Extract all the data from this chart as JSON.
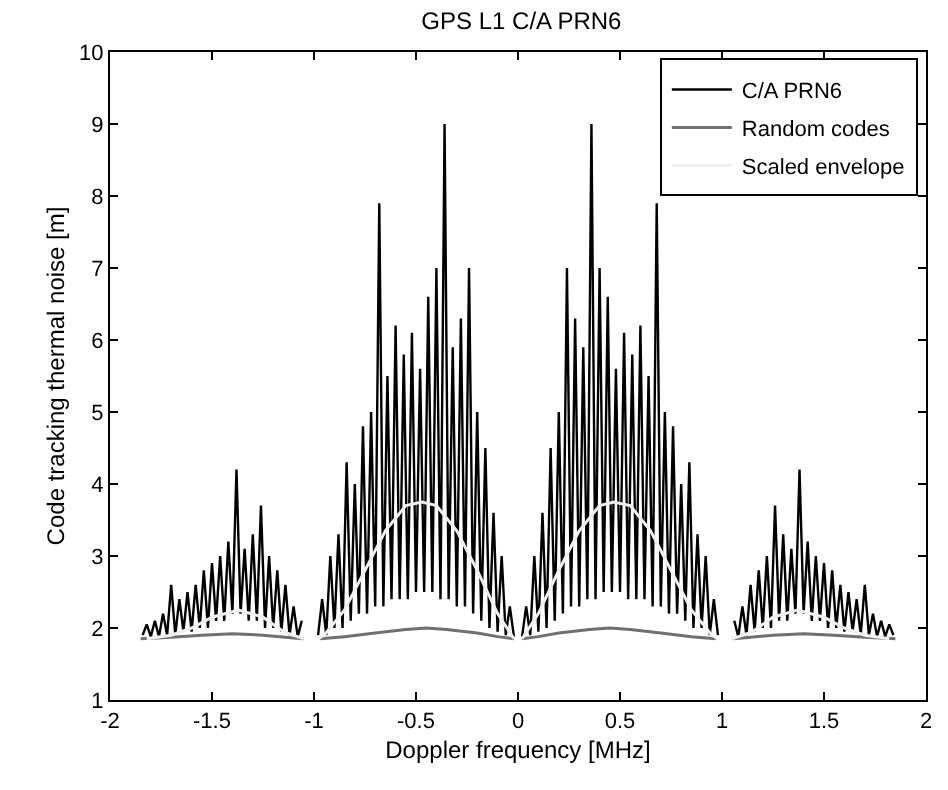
{
  "chart_data": {
    "type": "line",
    "title": "GPS L1 C/A PRN6",
    "xlabel": "Doppler frequency [MHz]",
    "ylabel": "Code tracking thermal noise [m]",
    "xlim": [
      -2,
      2
    ],
    "xticks": [
      -2,
      -1.5,
      -1,
      -0.5,
      0,
      0.5,
      1,
      1.5,
      2
    ],
    "ylim": [
      1,
      10
    ],
    "yticks": [
      1,
      2,
      3,
      4,
      5,
      6,
      7,
      8,
      9,
      10
    ],
    "legend": "top right",
    "line_style": "solid",
    "marker": "none",
    "series": [
      {
        "name": "C/A PRN6",
        "color": "#000000",
        "x": [
          -1.84,
          -1.82,
          -1.8,
          -1.78,
          -1.76,
          -1.74,
          -1.72,
          -1.7,
          -1.68,
          -1.66,
          -1.64,
          -1.62,
          -1.6,
          -1.58,
          -1.56,
          -1.54,
          -1.52,
          -1.5,
          -1.48,
          -1.46,
          -1.44,
          -1.42,
          -1.4,
          -1.38,
          -1.36,
          -1.34,
          -1.32,
          -1.3,
          -1.28,
          -1.26,
          -1.24,
          -1.22,
          -1.2,
          -1.18,
          -1.16,
          -1.14,
          -1.12,
          -1.1,
          -1.08,
          -1.06,
          -1.0,
          -0.98,
          -0.96,
          -0.94,
          -0.92,
          -0.9,
          -0.88,
          -0.86,
          -0.84,
          -0.82,
          -0.8,
          -0.78,
          -0.76,
          -0.74,
          -0.72,
          -0.7,
          -0.68,
          -0.66,
          -0.64,
          -0.62,
          -0.6,
          -0.58,
          -0.56,
          -0.54,
          -0.52,
          -0.5,
          -0.48,
          -0.46,
          -0.44,
          -0.42,
          -0.4,
          -0.38,
          -0.36,
          -0.34,
          -0.32,
          -0.3,
          -0.28,
          -0.26,
          -0.24,
          -0.22,
          -0.2,
          -0.18,
          -0.16,
          -0.14,
          -0.12,
          -0.1,
          -0.08,
          -0.06,
          -0.04,
          -0.02,
          0,
          0.02,
          0.04,
          0.06,
          0.08,
          0.1,
          0.12,
          0.14,
          0.16,
          0.18,
          0.2,
          0.22,
          0.24,
          0.26,
          0.28,
          0.3,
          0.32,
          0.34,
          0.36,
          0.38,
          0.4,
          0.42,
          0.44,
          0.46,
          0.48,
          0.5,
          0.52,
          0.54,
          0.56,
          0.58,
          0.6,
          0.62,
          0.64,
          0.66,
          0.68,
          0.7,
          0.72,
          0.74,
          0.76,
          0.78,
          0.8,
          0.82,
          0.84,
          0.86,
          0.88,
          0.9,
          0.92,
          0.94,
          0.96,
          0.98,
          1.0,
          1.06,
          1.08,
          1.1,
          1.12,
          1.14,
          1.16,
          1.18,
          1.2,
          1.22,
          1.24,
          1.26,
          1.28,
          1.3,
          1.32,
          1.34,
          1.36,
          1.38,
          1.4,
          1.42,
          1.44,
          1.46,
          1.48,
          1.5,
          1.52,
          1.54,
          1.56,
          1.58,
          1.6,
          1.62,
          1.64,
          1.66,
          1.68,
          1.7,
          1.72,
          1.74,
          1.76,
          1.78,
          1.8,
          1.82,
          1.84
        ],
        "values": [
          1.9,
          2.05,
          1.88,
          2.1,
          1.88,
          2.2,
          1.9,
          2.6,
          1.9,
          2.4,
          1.95,
          2.5,
          1.95,
          2.6,
          2.0,
          2.8,
          2.0,
          2.9,
          2.1,
          3.0,
          2.1,
          3.2,
          2.2,
          4.2,
          2.2,
          3.1,
          2.1,
          3.3,
          2.1,
          3.7,
          2.0,
          3.0,
          2.0,
          2.8,
          1.95,
          2.6,
          1.9,
          2.3,
          1.88,
          2.1,
          null,
          1.9,
          2.4,
          1.9,
          3.0,
          2.0,
          3.3,
          2.0,
          4.3,
          2.1,
          4.0,
          2.2,
          4.8,
          2.2,
          5.0,
          2.3,
          7.9,
          2.3,
          5.5,
          2.4,
          6.2,
          2.4,
          5.8,
          2.4,
          6.1,
          2.5,
          5.6,
          2.5,
          6.6,
          2.5,
          7.0,
          2.4,
          9.0,
          2.4,
          5.9,
          2.3,
          6.3,
          2.3,
          7.0,
          2.2,
          5.0,
          2.1,
          4.5,
          2.0,
          3.6,
          1.95,
          3.0,
          1.9,
          2.3,
          1.88,
          null,
          1.88,
          2.3,
          1.9,
          3.0,
          1.95,
          3.6,
          2.0,
          4.5,
          2.1,
          5.0,
          2.2,
          7.0,
          2.3,
          6.3,
          2.3,
          5.9,
          2.4,
          9.0,
          2.4,
          7.0,
          2.5,
          6.6,
          2.5,
          5.6,
          2.5,
          6.1,
          2.4,
          5.8,
          2.4,
          6.2,
          2.4,
          5.5,
          2.3,
          7.9,
          2.3,
          5.0,
          2.2,
          4.8,
          2.2,
          4.0,
          2.1,
          4.3,
          2.0,
          3.3,
          2.0,
          3.0,
          1.9,
          2.4,
          1.9,
          null,
          2.1,
          1.88,
          2.3,
          1.9,
          2.6,
          1.95,
          2.8,
          2.0,
          3.0,
          2.0,
          3.7,
          2.1,
          3.3,
          2.1,
          3.1,
          2.2,
          4.2,
          2.2,
          3.2,
          2.1,
          3.0,
          2.1,
          2.9,
          2.0,
          2.8,
          2.0,
          2.6,
          1.95,
          2.5,
          1.95,
          2.4,
          1.9,
          2.6,
          1.9,
          2.2,
          1.88,
          2.1,
          1.88,
          2.05,
          1.9
        ]
      },
      {
        "name": "Random codes",
        "color": "#707070",
        "x": [
          -1.85,
          -1.7,
          -1.55,
          -1.4,
          -1.25,
          -1.1,
          -1.05,
          -1.0,
          -0.97,
          -0.85,
          -0.7,
          -0.55,
          -0.45,
          -0.35,
          -0.2,
          -0.1,
          -0.02,
          0,
          0.02,
          0.1,
          0.2,
          0.35,
          0.45,
          0.55,
          0.7,
          0.85,
          0.97,
          1.0,
          1.05,
          1.1,
          1.25,
          1.4,
          1.55,
          1.7,
          1.85
        ],
        "values": [
          1.85,
          1.87,
          1.9,
          1.92,
          1.9,
          1.86,
          1.85,
          null,
          1.85,
          1.88,
          1.93,
          1.98,
          2.0,
          1.98,
          1.93,
          1.88,
          1.85,
          null,
          1.85,
          1.88,
          1.93,
          1.98,
          2.0,
          1.98,
          1.93,
          1.88,
          1.85,
          null,
          1.85,
          1.86,
          1.9,
          1.92,
          1.9,
          1.87,
          1.85
        ]
      },
      {
        "name": "Scaled envelope",
        "color": "#f0f0f0",
        "x": [
          -1.82,
          -1.7,
          -1.6,
          -1.5,
          -1.37,
          -1.25,
          -1.15,
          -1.05,
          -1.0,
          -0.98,
          -0.95,
          -0.85,
          -0.75,
          -0.65,
          -0.55,
          -0.47,
          -0.4,
          -0.3,
          -0.2,
          -0.1,
          -0.02,
          0,
          0.02,
          0.1,
          0.2,
          0.3,
          0.4,
          0.47,
          0.55,
          0.65,
          0.75,
          0.85,
          0.95,
          0.98,
          1.0,
          1.05,
          1.15,
          1.25,
          1.37,
          1.5,
          1.6,
          1.7,
          1.82
        ],
        "values": [
          1.85,
          1.9,
          2.0,
          2.15,
          2.25,
          2.15,
          1.95,
          1.85,
          null,
          1.85,
          1.9,
          2.25,
          2.8,
          3.35,
          3.7,
          3.75,
          3.7,
          3.35,
          2.8,
          2.2,
          1.85,
          null,
          1.85,
          2.2,
          2.8,
          3.35,
          3.7,
          3.75,
          3.7,
          3.35,
          2.8,
          2.25,
          1.9,
          1.85,
          null,
          1.85,
          1.95,
          2.15,
          2.25,
          2.15,
          2.0,
          1.9,
          1.85
        ]
      }
    ]
  }
}
